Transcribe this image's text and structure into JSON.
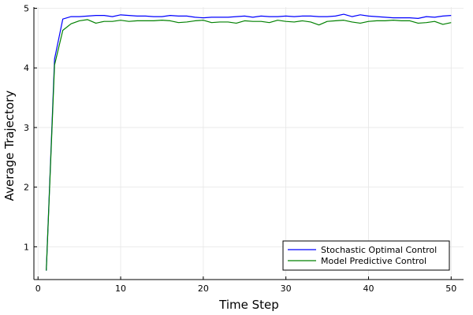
{
  "chart_data": {
    "type": "line",
    "xlabel": "Time Step",
    "ylabel": "Average Trajectory",
    "xlim": [
      -0.5,
      51.5
    ],
    "ylim": [
      0.45,
      5.02
    ],
    "xticks": [
      0,
      10,
      20,
      30,
      40,
      50
    ],
    "yticks": [
      1,
      2,
      3,
      4,
      5
    ],
    "xtick_labels": [
      "0",
      "10",
      "20",
      "30",
      "40",
      "50"
    ],
    "ytick_labels": [
      "1",
      "2",
      "3",
      "4",
      "5"
    ],
    "grid": true,
    "legend_position": "bottom-right",
    "x": [
      1,
      2,
      3,
      4,
      5,
      6,
      7,
      8,
      9,
      10,
      11,
      12,
      13,
      14,
      15,
      16,
      17,
      18,
      19,
      20,
      21,
      22,
      23,
      24,
      25,
      26,
      27,
      28,
      29,
      30,
      31,
      32,
      33,
      34,
      35,
      36,
      37,
      38,
      39,
      40,
      41,
      42,
      43,
      44,
      45,
      46,
      47,
      48,
      49,
      50
    ],
    "series": [
      {
        "name": "Stochastic Optimal Control",
        "color": "#0000ff",
        "values": [
          0.6,
          4.15,
          4.82,
          4.86,
          4.86,
          4.87,
          4.88,
          4.88,
          4.86,
          4.89,
          4.88,
          4.87,
          4.87,
          4.86,
          4.86,
          4.88,
          4.87,
          4.87,
          4.85,
          4.84,
          4.85,
          4.85,
          4.85,
          4.86,
          4.87,
          4.85,
          4.87,
          4.86,
          4.86,
          4.87,
          4.86,
          4.87,
          4.87,
          4.86,
          4.86,
          4.87,
          4.9,
          4.86,
          4.89,
          4.87,
          4.86,
          4.85,
          4.84,
          4.84,
          4.84,
          4.83,
          4.86,
          4.85,
          4.87,
          4.88
        ]
      },
      {
        "name": "Model Predictive Control",
        "color": "#008000",
        "values": [
          0.6,
          4.05,
          4.63,
          4.74,
          4.79,
          4.81,
          4.75,
          4.78,
          4.78,
          4.8,
          4.78,
          4.79,
          4.79,
          4.79,
          4.8,
          4.79,
          4.76,
          4.77,
          4.79,
          4.8,
          4.76,
          4.77,
          4.77,
          4.75,
          4.79,
          4.78,
          4.78,
          4.76,
          4.8,
          4.78,
          4.77,
          4.79,
          4.77,
          4.72,
          4.78,
          4.79,
          4.8,
          4.77,
          4.75,
          4.78,
          4.79,
          4.79,
          4.8,
          4.79,
          4.79,
          4.75,
          4.76,
          4.78,
          4.73,
          4.76
        ]
      }
    ]
  }
}
